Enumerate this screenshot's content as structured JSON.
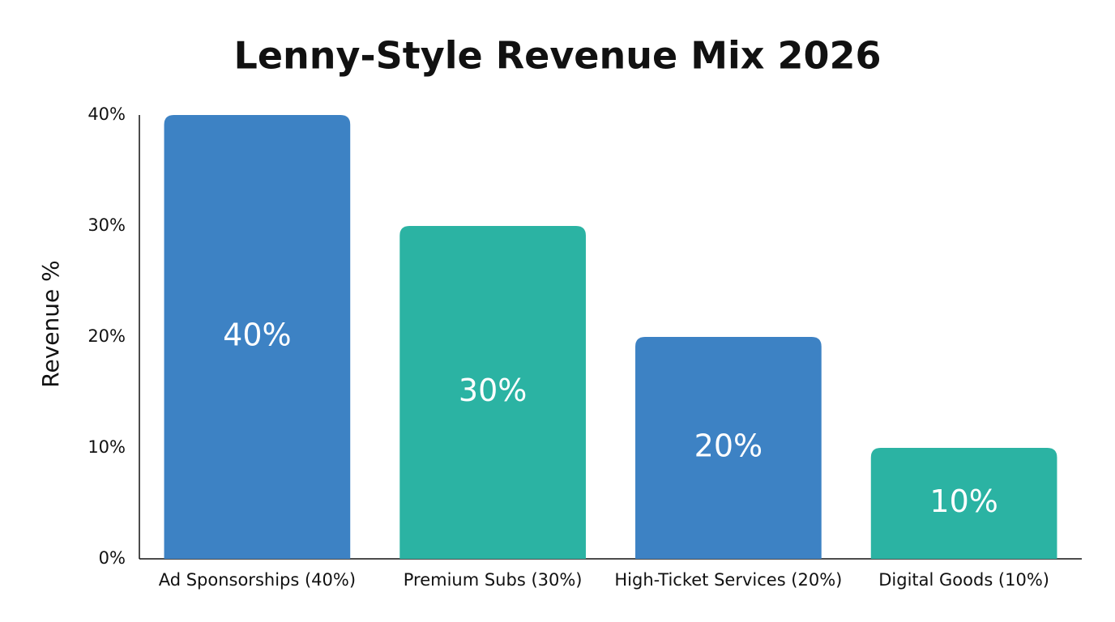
{
  "chart_data": {
    "type": "bar",
    "title": "Lenny-Style Revenue Mix 2026",
    "y_label": "Revenue %",
    "categories": [
      "Ad Sponsorships (40%)",
      "Premium Subs (30%)",
      "High-Ticket Services (20%)",
      "Digital Goods (10%)"
    ],
    "values": [
      40,
      30,
      20,
      10
    ],
    "value_labels": [
      "40%",
      "30%",
      "20%",
      "10%"
    ],
    "colors": [
      "#3d82c4",
      "#2bb3a3",
      "#3d82c4",
      "#2bb3a3"
    ],
    "ylim": [
      0,
      40
    ],
    "yticks": [
      {
        "value": 0,
        "label": "0%"
      },
      {
        "value": 10,
        "label": "10%"
      },
      {
        "value": 20,
        "label": "20%"
      },
      {
        "value": 30,
        "label": "30%"
      },
      {
        "value": 40,
        "label": "40%"
      }
    ],
    "grid": false
  }
}
